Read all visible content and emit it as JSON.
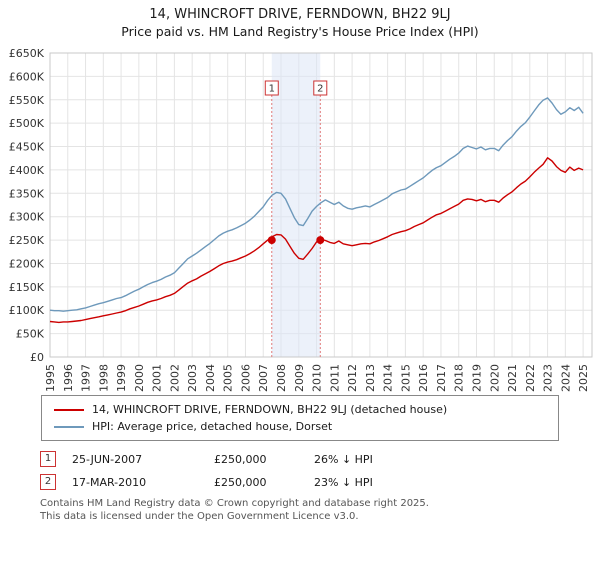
{
  "title": "14, WHINCROFT DRIVE, FERNDOWN, BH22 9LJ",
  "subtitle": "Price paid vs. HM Land Registry's House Price Index (HPI)",
  "chart_data": {
    "type": "line",
    "x_start": 1995,
    "x_step": 0.25,
    "x_ticks": [
      1995,
      1996,
      1997,
      1998,
      1999,
      2000,
      2001,
      2002,
      2003,
      2004,
      2005,
      2006,
      2007,
      2008,
      2009,
      2010,
      2011,
      2012,
      2013,
      2014,
      2015,
      2016,
      2017,
      2018,
      2019,
      2020,
      2021,
      2022,
      2023,
      2024,
      2025
    ],
    "x_tick_labels": [
      "1995",
      "1996",
      "1997",
      "1998",
      "1999",
      "2000",
      "2001",
      "2002",
      "2003",
      "2004",
      "2005",
      "2006",
      "2007",
      "2008",
      "2009",
      "2010",
      "2011",
      "2012",
      "2013",
      "2014",
      "2015",
      "2016",
      "2017",
      "2018",
      "2019",
      "2020",
      "2021",
      "2022",
      "2023",
      "2024",
      "2025"
    ],
    "ylim": [
      0,
      650
    ],
    "y_tick_step": 50,
    "y_tick_labels": [
      "£0",
      "£50K",
      "£100K",
      "£150K",
      "£200K",
      "£250K",
      "£300K",
      "£350K",
      "£400K",
      "£450K",
      "£500K",
      "£550K",
      "£600K",
      "£650K"
    ],
    "grid": true,
    "legend_position": "below",
    "series": [
      {
        "name": "14, WHINCROFT DRIVE, FERNDOWN, BH22 9LJ (detached house)",
        "color": "#cc0000",
        "values": [
          76,
          75,
          74,
          75,
          75,
          76,
          77,
          78,
          80,
          82,
          84,
          86,
          88,
          90,
          92,
          94,
          96,
          99,
          103,
          106,
          109,
          113,
          117,
          120,
          122,
          125,
          129,
          132,
          136,
          143,
          151,
          158,
          163,
          167,
          173,
          178,
          183,
          189,
          195,
          200,
          203,
          205,
          208,
          212,
          216,
          221,
          227,
          234,
          242,
          250,
          257,
          262,
          261,
          252,
          237,
          222,
          211,
          209,
          220,
          232,
          246,
          252,
          249,
          245,
          243,
          248,
          242,
          240,
          238,
          240,
          242,
          243,
          242,
          246,
          249,
          253,
          257,
          262,
          265,
          268,
          270,
          274,
          279,
          283,
          287,
          293,
          299,
          304,
          307,
          312,
          317,
          322,
          327,
          335,
          338,
          337,
          334,
          337,
          332,
          335,
          335,
          331,
          340,
          347,
          353,
          362,
          370,
          376,
          385,
          395,
          404,
          412,
          426,
          419,
          407,
          399,
          395,
          406,
          399,
          404,
          400
        ]
      },
      {
        "name": "HPI: Average price, detached house, Dorset",
        "color": "#6e99bb",
        "values": [
          100,
          99,
          99,
          98,
          99,
          100,
          101,
          103,
          105,
          108,
          111,
          114,
          116,
          119,
          122,
          125,
          127,
          131,
          136,
          141,
          145,
          150,
          155,
          159,
          162,
          166,
          171,
          175,
          180,
          190,
          200,
          210,
          216,
          222,
          229,
          236,
          243,
          251,
          259,
          265,
          269,
          272,
          276,
          281,
          286,
          293,
          301,
          311,
          321,
          335,
          346,
          352,
          350,
          338,
          318,
          298,
          283,
          281,
          296,
          312,
          322,
          330,
          336,
          331,
          326,
          331,
          323,
          318,
          316,
          319,
          321,
          323,
          321,
          326,
          331,
          336,
          341,
          349,
          353,
          357,
          359,
          365,
          371,
          377,
          383,
          391,
          399,
          405,
          409,
          416,
          423,
          429,
          436,
          446,
          451,
          448,
          445,
          449,
          443,
          446,
          446,
          441,
          453,
          463,
          471,
          483,
          493,
          501,
          513,
          526,
          539,
          549,
          554,
          543,
          529,
          519,
          524,
          533,
          527,
          534,
          521
        ]
      }
    ],
    "markers": [
      {
        "label": "1",
        "x": 2007.48,
        "y": 250
      },
      {
        "label": "2",
        "x": 2010.21,
        "y": 250
      }
    ],
    "shaded_region": {
      "from_x": 2007.48,
      "to_x": 2010.21
    }
  },
  "transactions": [
    {
      "num": "1",
      "date": "25-JUN-2007",
      "price": "£250,000",
      "hpi": "26% ↓ HPI"
    },
    {
      "num": "2",
      "date": "17-MAR-2010",
      "price": "£250,000",
      "hpi": "23% ↓ HPI"
    }
  ],
  "footer": {
    "line1": "Contains HM Land Registry data © Crown copyright and database right 2025.",
    "line2": "This data is licensed under the Open Government Licence v3.0."
  }
}
